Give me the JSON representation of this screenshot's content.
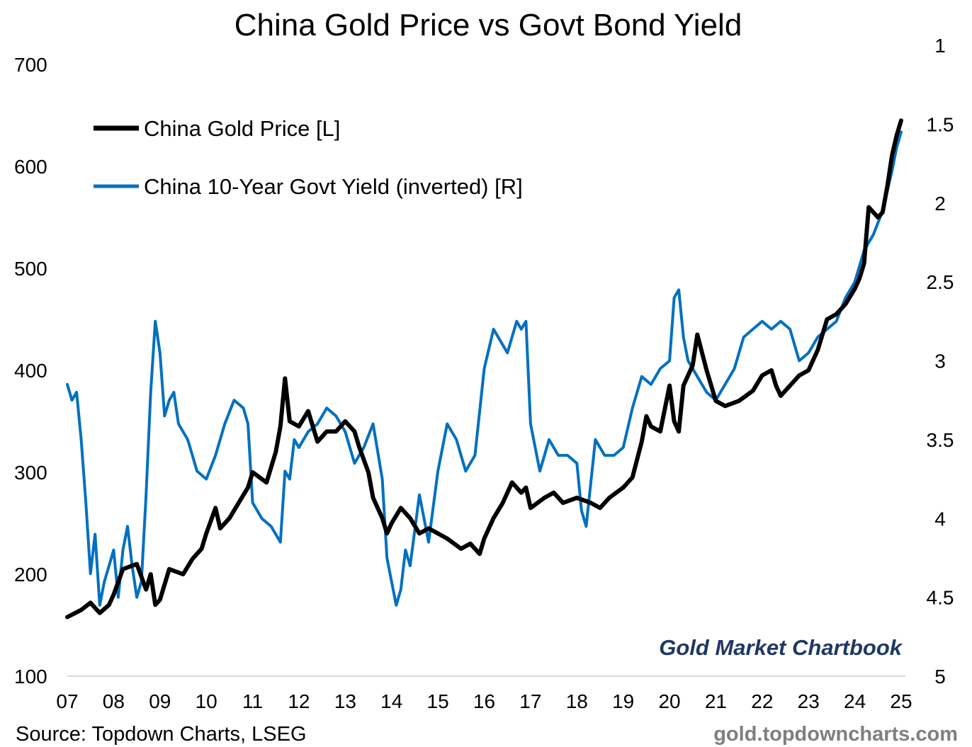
{
  "chart_data": {
    "type": "line",
    "title": "China Gold Price vs Govt Bond Yield",
    "x_ticks": [
      "07",
      "08",
      "09",
      "10",
      "11",
      "12",
      "13",
      "14",
      "15",
      "16",
      "17",
      "18",
      "19",
      "20",
      "21",
      "22",
      "23",
      "24",
      "25"
    ],
    "xlim": [
      2007.0,
      2025.0
    ],
    "left_axis": {
      "ylim": [
        100,
        700
      ],
      "ticks": [
        100,
        200,
        300,
        400,
        500,
        600,
        700
      ]
    },
    "right_axis": {
      "ylim": [
        1,
        5
      ],
      "inverted": true,
      "ticks": [
        "1",
        "1.5",
        "2",
        "2.5",
        "3",
        "3.5",
        "4",
        "4.5",
        "5"
      ]
    },
    "grid": false,
    "legend_position": "top-left",
    "series": [
      {
        "name": "China Gold Price [L]",
        "axis": "left",
        "color": "#000000",
        "x": [
          2007.0,
          2007.3,
          2007.5,
          2007.7,
          2007.9,
          2008.0,
          2008.2,
          2008.5,
          2008.7,
          2008.8,
          2008.9,
          2009.0,
          2009.2,
          2009.5,
          2009.7,
          2009.9,
          2010.0,
          2010.2,
          2010.3,
          2010.5,
          2010.7,
          2010.9,
          2011.0,
          2011.3,
          2011.5,
          2011.6,
          2011.7,
          2011.8,
          2012.0,
          2012.2,
          2012.4,
          2012.6,
          2012.8,
          2013.0,
          2013.2,
          2013.3,
          2013.5,
          2013.6,
          2013.8,
          2013.9,
          2014.0,
          2014.2,
          2014.4,
          2014.6,
          2014.8,
          2015.0,
          2015.2,
          2015.5,
          2015.7,
          2015.9,
          2016.0,
          2016.2,
          2016.4,
          2016.6,
          2016.8,
          2016.9,
          2017.0,
          2017.3,
          2017.5,
          2017.7,
          2018.0,
          2018.3,
          2018.5,
          2018.7,
          2019.0,
          2019.2,
          2019.4,
          2019.5,
          2019.6,
          2019.8,
          2020.0,
          2020.1,
          2020.2,
          2020.3,
          2020.5,
          2020.6,
          2020.8,
          2021.0,
          2021.2,
          2021.5,
          2021.8,
          2022.0,
          2022.2,
          2022.3,
          2022.4,
          2022.6,
          2022.8,
          2023.0,
          2023.2,
          2023.4,
          2023.6,
          2023.8,
          2024.0,
          2024.1,
          2024.2,
          2024.3,
          2024.5,
          2024.6,
          2024.7,
          2024.8,
          2024.9,
          2025.0
        ],
        "values": [
          158,
          165,
          172,
          162,
          170,
          180,
          205,
          210,
          185,
          200,
          170,
          175,
          205,
          200,
          215,
          225,
          240,
          265,
          245,
          255,
          270,
          285,
          300,
          290,
          320,
          345,
          392,
          350,
          345,
          360,
          330,
          340,
          340,
          350,
          340,
          325,
          300,
          275,
          255,
          240,
          250,
          265,
          255,
          240,
          245,
          240,
          235,
          225,
          230,
          220,
          235,
          255,
          270,
          290,
          280,
          285,
          265,
          275,
          280,
          270,
          275,
          270,
          265,
          275,
          285,
          295,
          330,
          355,
          345,
          340,
          385,
          350,
          340,
          385,
          405,
          435,
          400,
          370,
          365,
          370,
          380,
          395,
          400,
          385,
          375,
          385,
          395,
          400,
          420,
          450,
          455,
          465,
          480,
          490,
          505,
          560,
          550,
          555,
          580,
          610,
          630,
          645
        ]
      },
      {
        "name": "China 10-Year Govt Yield (inverted) [R]",
        "axis": "right",
        "color": "#0070c0",
        "x": [
          2007.0,
          2007.1,
          2007.2,
          2007.3,
          2007.4,
          2007.5,
          2007.6,
          2007.7,
          2007.8,
          2007.9,
          2008.0,
          2008.1,
          2008.2,
          2008.3,
          2008.4,
          2008.5,
          2008.6,
          2008.7,
          2008.8,
          2008.9,
          2009.0,
          2009.1,
          2009.2,
          2009.3,
          2009.4,
          2009.6,
          2009.8,
          2010.0,
          2010.2,
          2010.4,
          2010.6,
          2010.8,
          2010.9,
          2011.0,
          2011.2,
          2011.4,
          2011.6,
          2011.7,
          2011.8,
          2011.9,
          2012.0,
          2012.2,
          2012.4,
          2012.6,
          2012.8,
          2013.0,
          2013.2,
          2013.4,
          2013.6,
          2013.8,
          2013.9,
          2014.0,
          2014.1,
          2014.2,
          2014.3,
          2014.4,
          2014.6,
          2014.8,
          2015.0,
          2015.2,
          2015.4,
          2015.6,
          2015.8,
          2016.0,
          2016.2,
          2016.4,
          2016.5,
          2016.6,
          2016.7,
          2016.8,
          2016.9,
          2017.0,
          2017.2,
          2017.4,
          2017.6,
          2017.8,
          2018.0,
          2018.1,
          2018.2,
          2018.4,
          2018.6,
          2018.8,
          2019.0,
          2019.2,
          2019.4,
          2019.6,
          2019.8,
          2020.0,
          2020.1,
          2020.2,
          2020.3,
          2020.4,
          2020.6,
          2020.8,
          2021.0,
          2021.2,
          2021.4,
          2021.6,
          2021.8,
          2022.0,
          2022.2,
          2022.4,
          2022.6,
          2022.8,
          2023.0,
          2023.2,
          2023.4,
          2023.6,
          2023.8,
          2024.0,
          2024.2,
          2024.4,
          2024.6,
          2024.8,
          2024.9,
          2025.0
        ],
        "values": [
          3.15,
          3.25,
          3.2,
          3.5,
          3.9,
          4.35,
          4.1,
          4.55,
          4.4,
          4.3,
          4.2,
          4.5,
          4.2,
          4.05,
          4.3,
          4.5,
          4.4,
          3.85,
          3.2,
          2.75,
          2.95,
          3.35,
          3.25,
          3.2,
          3.4,
          3.5,
          3.7,
          3.75,
          3.6,
          3.4,
          3.25,
          3.3,
          3.4,
          3.9,
          4.0,
          4.05,
          4.15,
          3.7,
          3.75,
          3.5,
          3.55,
          3.45,
          3.4,
          3.3,
          3.35,
          3.45,
          3.65,
          3.55,
          3.4,
          3.75,
          4.25,
          4.4,
          4.55,
          4.45,
          4.2,
          4.3,
          3.85,
          4.15,
          3.7,
          3.4,
          3.5,
          3.7,
          3.6,
          3.05,
          2.8,
          2.9,
          2.95,
          2.85,
          2.75,
          2.8,
          2.75,
          3.4,
          3.7,
          3.5,
          3.6,
          3.6,
          3.65,
          3.95,
          4.05,
          3.5,
          3.6,
          3.6,
          3.55,
          3.3,
          3.1,
          3.15,
          3.05,
          3.0,
          2.6,
          2.55,
          2.85,
          3.0,
          3.1,
          3.2,
          3.25,
          3.15,
          3.05,
          2.85,
          2.8,
          2.75,
          2.8,
          2.75,
          2.8,
          3.0,
          2.95,
          2.85,
          2.8,
          2.75,
          2.6,
          2.5,
          2.3,
          2.2,
          2.05,
          1.8,
          1.65,
          1.55
        ]
      }
    ]
  },
  "brand": "Gold Market Chartbook",
  "source": "Source: Topdown Charts, LSEG",
  "watermark": "gold.topdowncharts.com"
}
